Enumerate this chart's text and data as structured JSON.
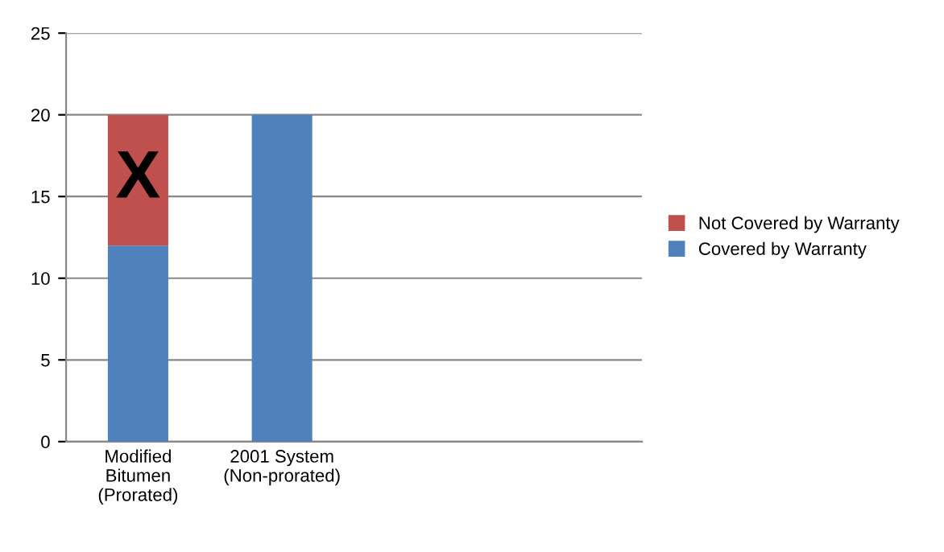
{
  "chart_data": {
    "type": "bar",
    "stacked": true,
    "categories": [
      "Modified\nBitumen\n(Prorated)",
      "2001 System\n(Non-prorated)",
      null,
      null
    ],
    "series": [
      {
        "name": "Covered by Warranty",
        "color": "#4f81bd",
        "values": [
          12,
          20,
          null,
          null
        ]
      },
      {
        "name": "Not Covered by Warranty",
        "color": "#c0504d",
        "values": [
          8,
          0,
          null,
          null
        ]
      }
    ],
    "ylim": [
      0,
      25
    ],
    "yticks": [
      0,
      5,
      10,
      15,
      20,
      25
    ],
    "grid": "y",
    "legend": "right",
    "annotations": [
      "X"
    ]
  }
}
